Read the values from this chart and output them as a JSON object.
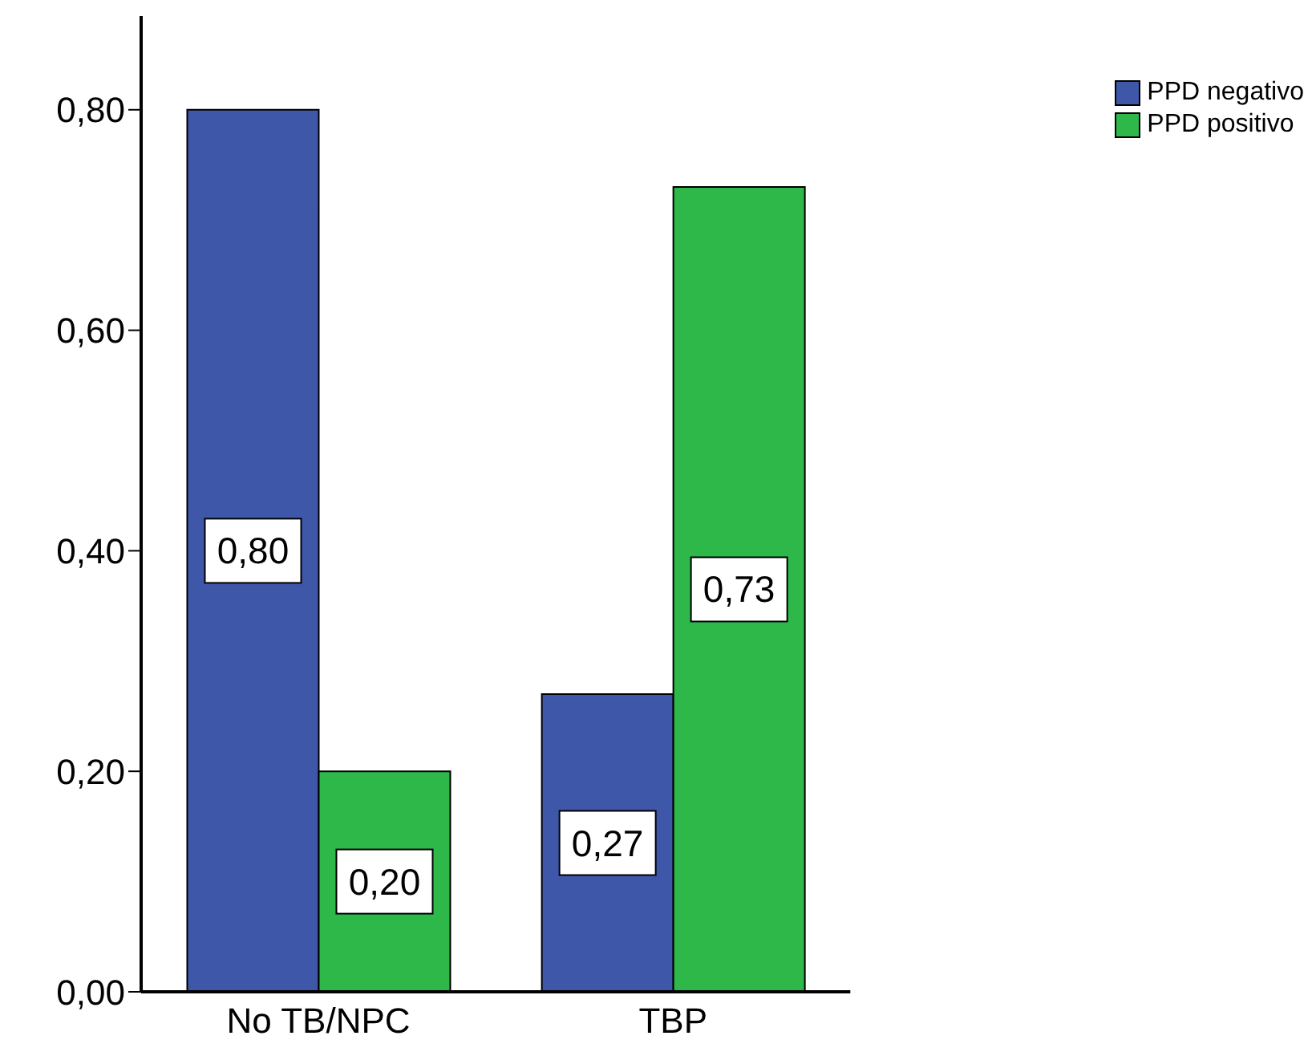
{
  "chart_data": {
    "type": "bar",
    "categories": [
      "No TB/NPC",
      "TBP"
    ],
    "series": [
      {
        "name": "PPD negativo",
        "color": "#3f57a8",
        "values": [
          0.8,
          0.27
        ],
        "value_labels": [
          "0,80",
          "0,27"
        ]
      },
      {
        "name": "PPD positivo",
        "color": "#2fb84a",
        "values": [
          0.2,
          0.73
        ],
        "value_labels": [
          "0,20",
          "0,73"
        ]
      }
    ],
    "ylim": [
      0,
      0.885
    ],
    "yticks": [
      {
        "value": 0,
        "label": "0,00"
      },
      {
        "value": 0.2,
        "label": "0,20"
      },
      {
        "value": 0.4,
        "label": "0,40"
      },
      {
        "value": 0.6,
        "label": "0,60"
      },
      {
        "value": 0.8,
        "label": "0,80"
      }
    ],
    "grid": false,
    "legend": "top right"
  }
}
